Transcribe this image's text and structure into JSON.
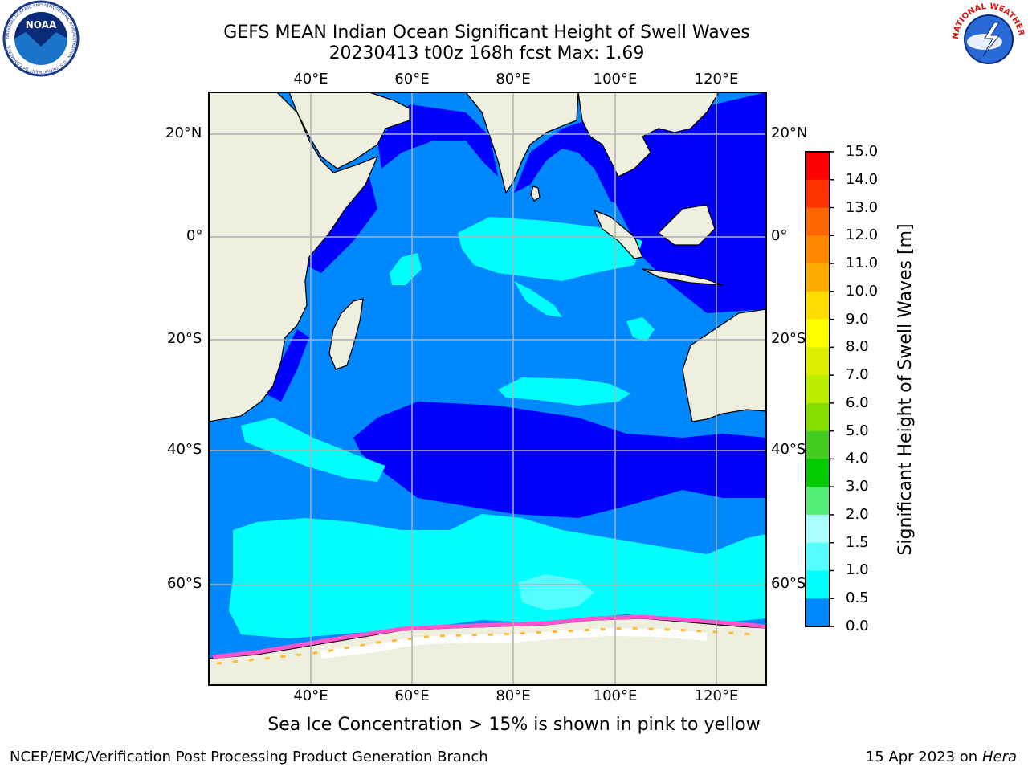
{
  "title": {
    "line1": "GEFS MEAN Indian Ocean Significant Height of Swell Waves",
    "line2": "20230413 t00z 168h fcst   Max: 1.69"
  },
  "map": {
    "lon_labels": [
      "40°E",
      "60°E",
      "80°E",
      "100°E",
      "120°E"
    ],
    "lat_labels": [
      "20°N",
      "0°",
      "20°S",
      "40°S",
      "60°S"
    ],
    "lon_range": [
      20,
      130
    ],
    "lat_range": [
      -75,
      28
    ]
  },
  "colorbar": {
    "title": "Significant Height of Swell Waves [m]",
    "ticks": [
      "15.0",
      "14.0",
      "13.0",
      "12.0",
      "11.0",
      "10.0",
      "9.0",
      "8.0",
      "7.0",
      "6.0",
      "5.0",
      "4.0",
      "3.0",
      "2.0",
      "1.5",
      "1.0",
      "0.5",
      "0.0"
    ],
    "colors": [
      "#ff0000",
      "#ff3300",
      "#ff6600",
      "#ff8800",
      "#ffaa00",
      "#ffdd00",
      "#ffff00",
      "#ddee00",
      "#bbee00",
      "#88dd00",
      "#44cc22",
      "#00cc00",
      "#55ee77",
      "#aaffff",
      "#55ffff",
      "#00ffff",
      "#0088ff",
      "#0000ff"
    ]
  },
  "caption": "Sea Ice Concentration > 15% is shown in pink to yellow",
  "footer": {
    "left": "NCEP/EMC/Verification Post Processing Product Generation Branch",
    "right_prefix": "15 Apr 2023 on ",
    "right_host": "Hera"
  },
  "logos": {
    "left": "NOAA",
    "left_ring": "NATIONAL OCEANIC AND ATMOSPHERIC ADMINISTRATION · U.S. DEPARTMENT OF COMMERCE",
    "right_ring": "NATIONAL WEATHER SERVICE"
  }
}
